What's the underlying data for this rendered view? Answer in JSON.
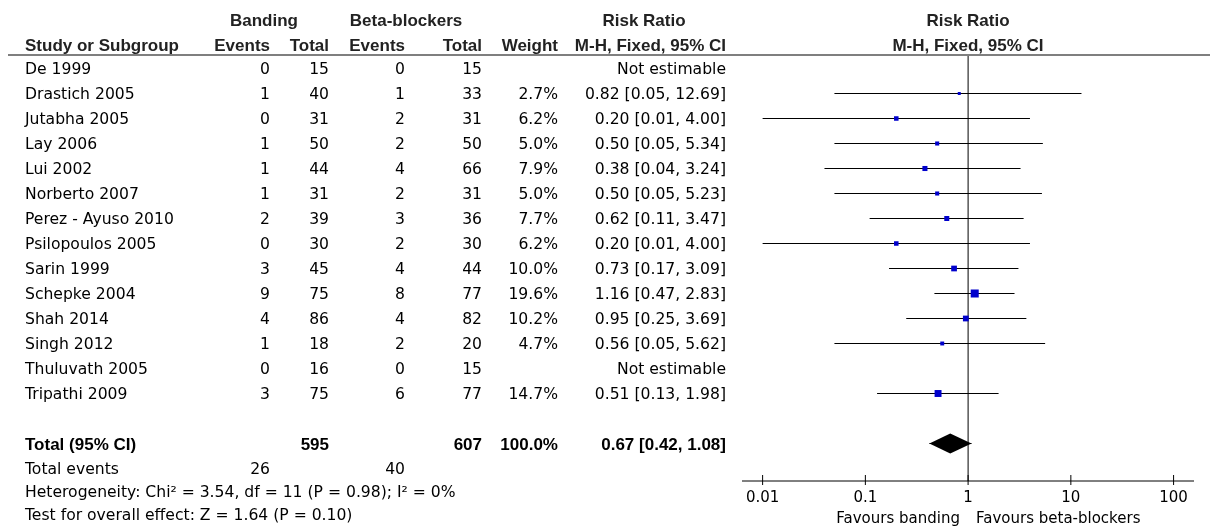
{
  "chart_data": [
    {
      "type": "other",
      "ylabel": "Study or Subgroup",
      "categories": [
        "De 1999",
        "Drastich 2005",
        "Jutabha 2005",
        "Lay 2006",
        "Lui 2002",
        "Norberto 2007",
        "Perez - Ayuso 2010",
        "Psilopoulos 2005",
        "Sarin 1999",
        "Schepke 2004",
        "Shah 2014",
        "Singh 2012",
        "Thuluvath 2005",
        "Tripathi 2009",
        null,
        "Total (95% CI)",
        "Total events"
      ],
      "series": [
        {
          "name": "Events",
          "values": [
            0,
            1,
            0,
            1,
            1,
            1,
            2,
            0,
            3,
            9,
            4,
            1,
            0,
            3,
            null,
            null,
            26
          ]
        },
        {
          "name": "Total",
          "values": [
            15,
            40,
            31,
            50,
            44,
            31,
            39,
            30,
            45,
            75,
            86,
            18,
            16,
            75,
            null,
            595,
            null
          ]
        },
        {
          "name": "Events",
          "values": [
            0,
            1,
            2,
            2,
            4,
            2,
            3,
            2,
            4,
            8,
            4,
            2,
            0,
            6,
            null,
            null,
            40
          ]
        },
        {
          "name": "Total",
          "values": [
            15,
            33,
            31,
            50,
            66,
            31,
            36,
            30,
            44,
            77,
            82,
            20,
            15,
            77,
            null,
            607,
            null
          ]
        },
        {
          "name": "Weight",
          "values": [
            null,
            2.7,
            6.2,
            5.0,
            7.9,
            5.0,
            7.7,
            6.2,
            10.0,
            19.6,
            10.2,
            4.7,
            null,
            14.7,
            null,
            100.0,
            null
          ],
          "value_labels": [
            null,
            "2.7%",
            "6.2%",
            "5.0%",
            "7.9%",
            "5.0%",
            "7.7%",
            "6.2%",
            "10.0%",
            "19.6%",
            "10.2%",
            "4.7%",
            null,
            "14.7%",
            null,
            "100.0%",
            null
          ]
        },
        {
          "name": "M-H, Fixed, 95% CI",
          "values": [
            null,
            0.82,
            0.2,
            0.5,
            0.38,
            0.5,
            0.62,
            0.2,
            0.73,
            1.16,
            0.95,
            0.56,
            null,
            0.51,
            null,
            0.67,
            null
          ],
          "value_labels": [
            "Not estimable",
            "0.82 [0.05, 12.69]",
            "0.20 [0.01, 4.00]",
            "0.50 [0.05, 5.34]",
            "0.38 [0.04, 3.24]",
            "0.50 [0.05, 5.23]",
            "0.62 [0.11, 3.47]",
            "0.20 [0.01, 4.00]",
            "0.73 [0.17, 3.09]",
            "1.16 [0.47, 2.83]",
            "0.95 [0.25, 3.69]",
            "0.56 [0.05, 5.62]",
            "Not estimable",
            "0.51 [0.13, 1.98]",
            null,
            "0.67 [0.42, 1.08]",
            null
          ]
        }
      ],
      "data_labels": true,
      "annotations": [
        "Banding",
        "Beta-blockers",
        "Risk Ratio",
        "Heterogeneity: Chi² = 3.54, df = 11 (P = 0.98); I² = 0%",
        "Test for overall effect: Z = 1.64 (P = 0.10)"
      ]
    },
    {
      "type": "bubble",
      "title": "Risk Ratio",
      "subtitle": "M-H, Fixed, 95% CI",
      "orientation": "horizontal",
      "marker": "square",
      "log": "x",
      "categories": [
        null,
        null,
        null,
        null,
        null,
        null,
        null,
        null,
        null,
        null,
        null,
        null,
        null,
        null,
        null,
        null,
        null
      ],
      "series": [
        {
          "color": "#0000cc",
          "values": [
            null,
            0.82,
            0.2,
            0.5,
            0.38,
            0.5,
            0.62,
            0.2,
            0.73,
            1.16,
            0.95,
            0.56,
            null,
            0.51,
            null,
            null,
            null
          ],
          "errors": [
            null,
            [
              0.05,
              12.69
            ],
            [
              0.01,
              4.0
            ],
            [
              0.05,
              5.34
            ],
            [
              0.04,
              3.24
            ],
            [
              0.05,
              5.23
            ],
            [
              0.11,
              3.47
            ],
            [
              0.01,
              4.0
            ],
            [
              0.17,
              3.09
            ],
            [
              0.47,
              2.83
            ],
            [
              0.25,
              3.69
            ],
            [
              0.05,
              5.62
            ],
            null,
            [
              0.13,
              1.98
            ],
            null,
            null,
            null
          ],
          "sizes": [
            null,
            0.14,
            0.32,
            0.26,
            0.4,
            0.26,
            0.39,
            0.32,
            0.51,
            1,
            0.52,
            0.24,
            null,
            0.75,
            null,
            null,
            null
          ]
        },
        {
          "type": "scatter",
          "marker": "diamond",
          "color": "#000000",
          "values": [
            null,
            null,
            null,
            null,
            null,
            null,
            null,
            null,
            null,
            null,
            null,
            null,
            null,
            null,
            null,
            0.67,
            null
          ],
          "errors": [
            null,
            null,
            null,
            null,
            null,
            null,
            null,
            null,
            null,
            null,
            null,
            null,
            null,
            null,
            null,
            [
              0.42,
              1.08
            ],
            null
          ]
        }
      ],
      "xlim": [
        0.0063,
        158
      ],
      "xticks": [
        0.01,
        0.1,
        1,
        10,
        100
      ],
      "ref_lines": [
        {
          "axis": "x",
          "value": 1
        }
      ],
      "annotations": [
        "Favours banding",
        "Favours beta-blockers"
      ]
    }
  ]
}
